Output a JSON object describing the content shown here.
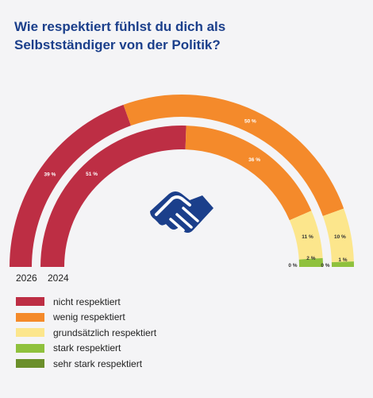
{
  "title_lines": [
    "Wie respektiert fühlst du dich als",
    "Selbstständiger von der Politik?"
  ],
  "chart_data": {
    "type": "donut",
    "title": "Wie respektiert fühlst du dich als Selbstständiger von der Politik?",
    "categories": [
      "nicht respektiert",
      "wenig respektiert",
      "grundsätzlich respektiert",
      "stark respektiert",
      "sehr stark respektiert"
    ],
    "colors": [
      "#bd2e44",
      "#f48a2b",
      "#fce68c",
      "#8fc13d",
      "#6b8f2a"
    ],
    "series": [
      {
        "name": "2026",
        "values": [
          39,
          50,
          10,
          1,
          0
        ],
        "labels": [
          "39 %",
          "50 %",
          "10 %",
          "1 %",
          "0 %"
        ]
      },
      {
        "name": "2024",
        "values": [
          51,
          36,
          11,
          2,
          0
        ],
        "labels": [
          "51 %",
          "36 %",
          "11 %",
          "2 %",
          "0 %"
        ]
      }
    ],
    "legend_position": "bottom-left",
    "icon": "handshake-icon"
  }
}
